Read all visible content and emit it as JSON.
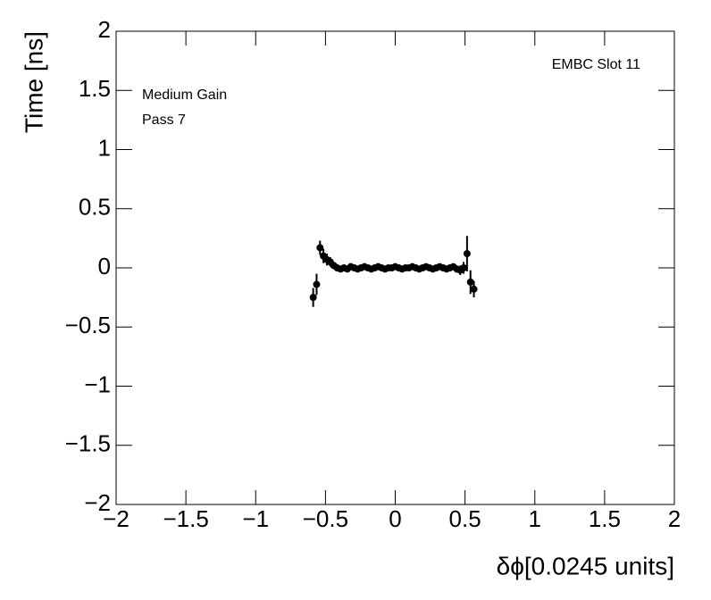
{
  "chart_data": {
    "type": "scatter",
    "xlabel": "δϕ[0.0245 units]",
    "ylabel": "Time [ns]",
    "annotations": [
      "Medium Gain",
      "Pass 7",
      "EMBC Slot 11"
    ],
    "color": "#000000",
    "xlim": [
      -2,
      2
    ],
    "ylim": [
      -2,
      2
    ],
    "xticks": [
      {
        "value": -2,
        "label": "−2"
      },
      {
        "value": -1.5,
        "label": "−1.5"
      },
      {
        "value": -1,
        "label": "−1"
      },
      {
        "value": -0.5,
        "label": "−0.5"
      },
      0,
      0.5,
      1,
      1.5,
      2
    ],
    "yticks": [
      {
        "value": -2,
        "label": "−2"
      },
      {
        "value": -1.5,
        "label": "−1.5"
      },
      {
        "value": -1,
        "label": "−1"
      },
      {
        "value": -0.5,
        "label": "−0.5"
      },
      0,
      0.5,
      1,
      1.5,
      2
    ],
    "x": [
      -0.588,
      -0.5635,
      -0.539,
      -0.5145,
      -0.49,
      -0.4655,
      -0.441,
      -0.4165,
      -0.392,
      -0.3675,
      -0.343,
      -0.3185,
      -0.294,
      -0.2695,
      -0.245,
      -0.2205,
      -0.196,
      -0.1715,
      -0.147,
      -0.1225,
      -0.098,
      -0.0735,
      -0.049,
      -0.0245,
      0,
      0.0245,
      0.049,
      0.0735,
      0.098,
      0.1225,
      0.147,
      0.1715,
      0.196,
      0.2205,
      0.245,
      0.2695,
      0.294,
      0.3185,
      0.343,
      0.3675,
      0.392,
      0.4165,
      0.441,
      0.4655,
      0.49,
      0.5145,
      0.539,
      0.5635
    ],
    "values": [
      -0.25,
      -0.14,
      0.17,
      0.1,
      0.07,
      0.05,
      0.02,
      0,
      -0.01,
      0,
      -0.01,
      0.01,
      0,
      -0.01,
      0,
      0.01,
      0,
      -0.01,
      0,
      0.01,
      0,
      -0.01,
      0,
      0,
      0.01,
      0,
      -0.01,
      0,
      0,
      0.01,
      0,
      -0.01,
      0,
      0.01,
      0,
      -0.01,
      0,
      0.01,
      0,
      -0.01,
      0,
      0.01,
      -0.01,
      -0.02,
      0,
      0.12,
      -0.12,
      -0.18
    ],
    "errors": [
      0.08,
      0.09,
      0.06,
      0.06,
      0.05,
      0.04,
      0.03,
      0.03,
      0.02,
      0.02,
      0.02,
      0.02,
      0.02,
      0.02,
      0.02,
      0.02,
      0.02,
      0.02,
      0.02,
      0.02,
      0.02,
      0.02,
      0.02,
      0.02,
      0.02,
      0.02,
      0.02,
      0.02,
      0.02,
      0.02,
      0.02,
      0.02,
      0.02,
      0.02,
      0.02,
      0.02,
      0.02,
      0.02,
      0.02,
      0.02,
      0.02,
      0.02,
      0.03,
      0.04,
      0.05,
      0.15,
      0.1,
      0.07
    ]
  }
}
